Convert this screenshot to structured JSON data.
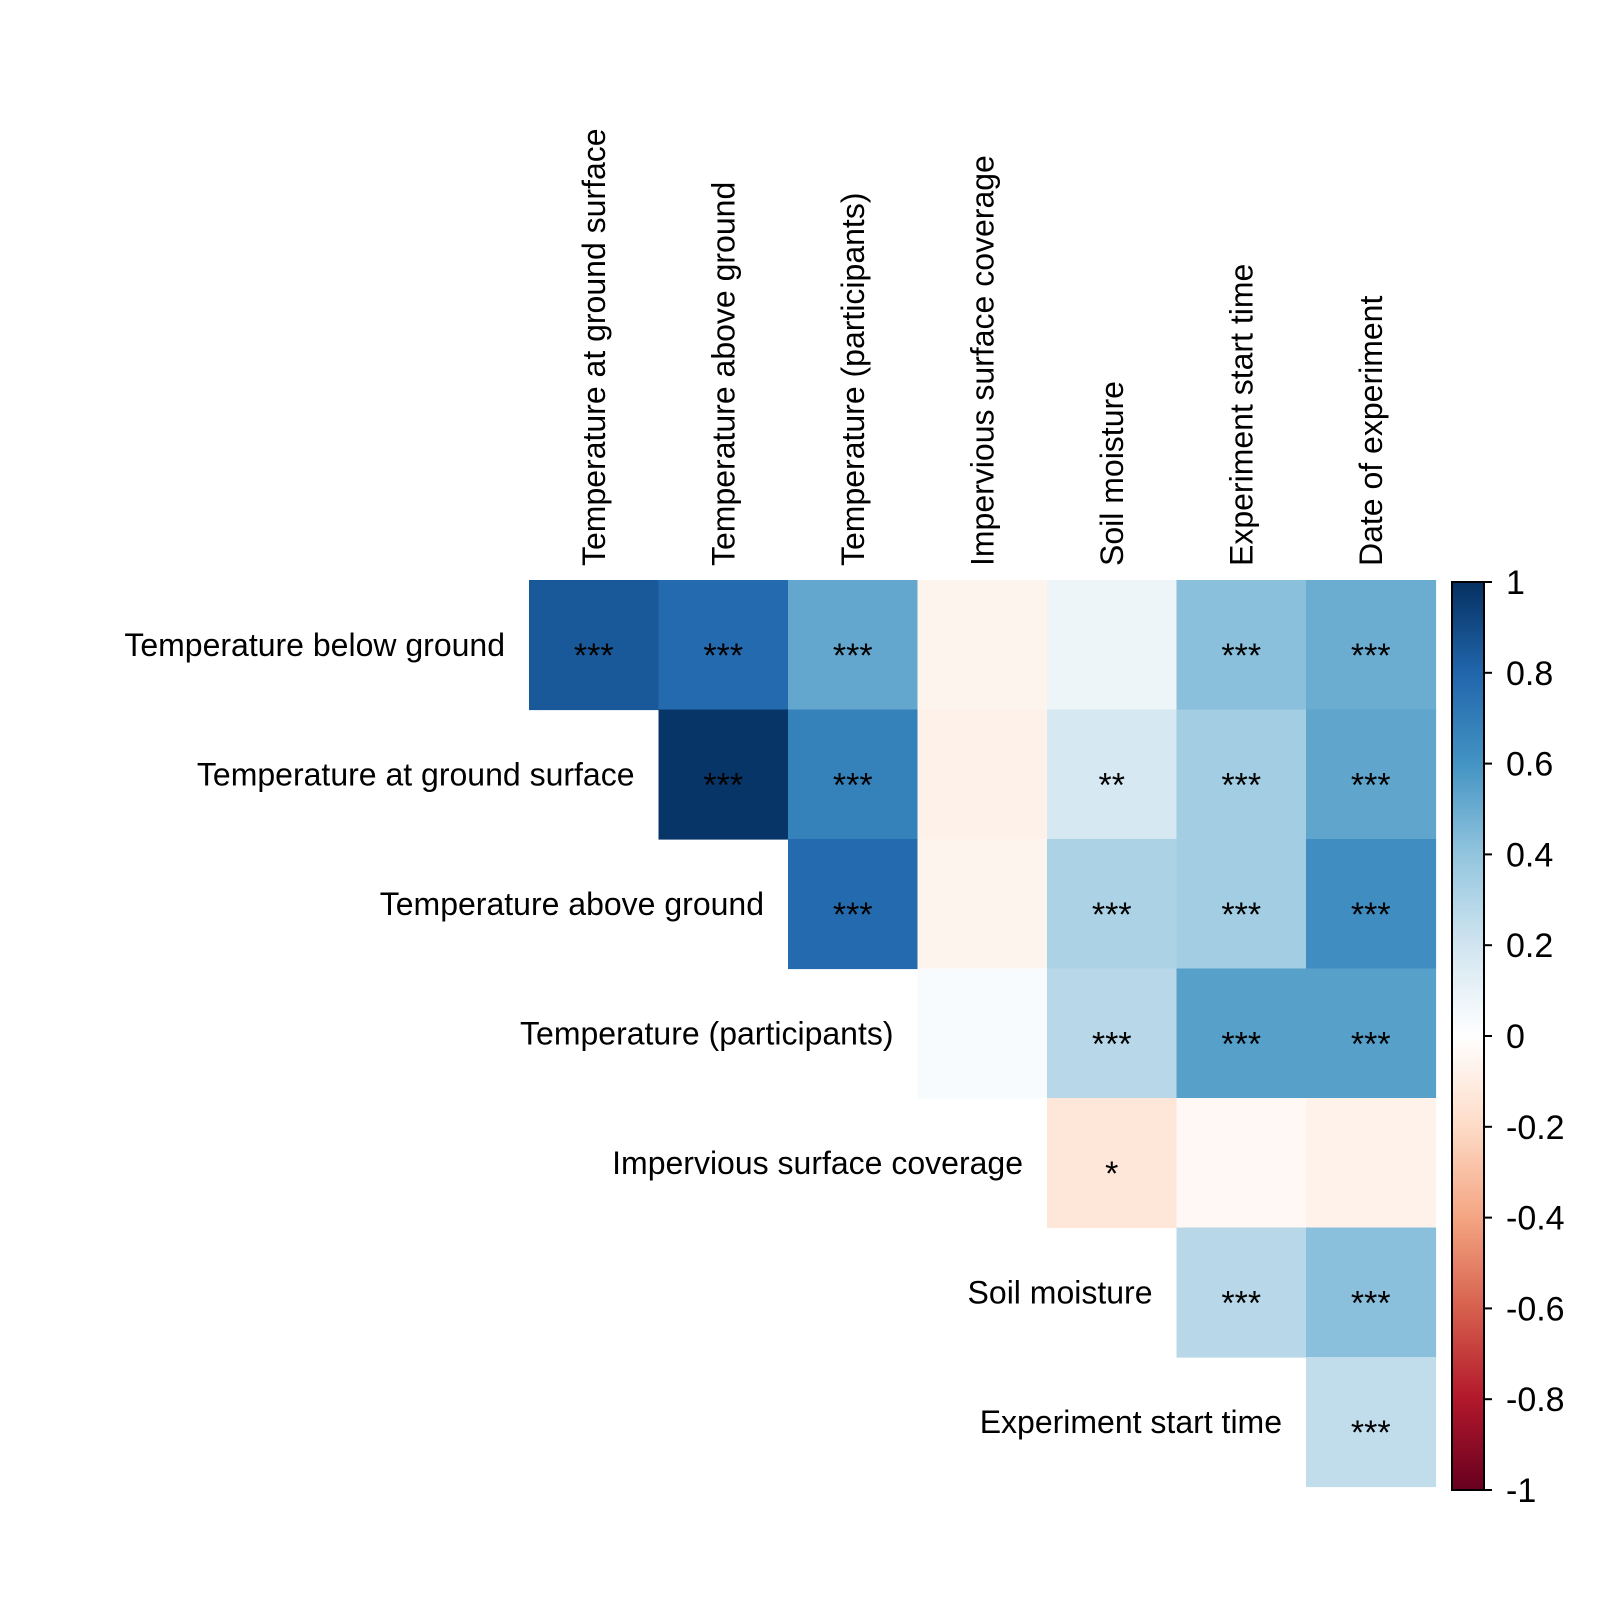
{
  "chart_data": {
    "type": "heatmap",
    "title": "",
    "xlabel": "",
    "ylabel": "",
    "layout": "upper-triangle",
    "columns": [
      "Temperature at ground surface",
      "Temperature above ground",
      "Temperature (participants)",
      "Impervious surface coverage",
      "Soil moisture",
      "Experiment start time",
      "Date of experiment"
    ],
    "rows": [
      "Temperature below ground",
      "Temperature at ground surface",
      "Temperature above ground",
      "Temperature (participants)",
      "Impervious surface coverage",
      "Soil moisture",
      "Experiment start time"
    ],
    "values": [
      [
        0.85,
        0.78,
        0.52,
        -0.06,
        0.08,
        0.42,
        0.5
      ],
      [
        null,
        0.98,
        0.68,
        -0.08,
        0.18,
        0.35,
        0.53
      ],
      [
        null,
        null,
        0.78,
        -0.06,
        0.32,
        0.35,
        0.62
      ],
      [
        null,
        null,
        null,
        0.03,
        0.28,
        0.55,
        0.55
      ],
      [
        null,
        null,
        null,
        null,
        -0.14,
        -0.04,
        -0.07
      ],
      [
        null,
        null,
        null,
        null,
        null,
        0.28,
        0.42
      ],
      [
        null,
        null,
        null,
        null,
        null,
        null,
        0.25
      ]
    ],
    "significance": [
      [
        "***",
        "***",
        "***",
        "",
        "",
        "***",
        "***"
      ],
      [
        null,
        "***",
        "***",
        "",
        "**",
        "***",
        "***"
      ],
      [
        null,
        null,
        "***",
        "",
        "***",
        "***",
        "***"
      ],
      [
        null,
        null,
        null,
        "",
        "***",
        "***",
        "***"
      ],
      [
        null,
        null,
        null,
        null,
        "*",
        "",
        ""
      ],
      [
        null,
        null,
        null,
        null,
        null,
        "***",
        "***"
      ],
      [
        null,
        null,
        null,
        null,
        null,
        null,
        "***"
      ]
    ],
    "colorbar": {
      "range": [
        -1,
        1
      ],
      "ticks": [
        "1",
        "0.8",
        "0.6",
        "0.4",
        "0.2",
        "0",
        "-0.2",
        "-0.4",
        "-0.6",
        "-0.8",
        "-1"
      ],
      "tick_values": [
        1,
        0.8,
        0.6,
        0.4,
        0.2,
        0,
        -0.2,
        -0.4,
        -0.6,
        -0.8,
        -1
      ],
      "placement": "right",
      "palette": [
        "#67001F",
        "#B2182B",
        "#D6604D",
        "#F4A582",
        "#FDDBC7",
        "#FFFFFF",
        "#D1E5F0",
        "#92C5DE",
        "#4393C3",
        "#2166AC",
        "#053061"
      ]
    }
  }
}
